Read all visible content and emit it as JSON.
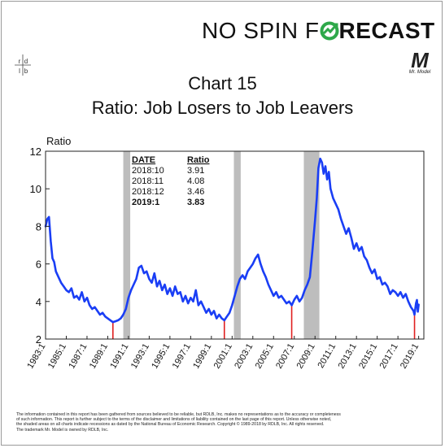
{
  "brand": {
    "part1": "NO SPIN F",
    "part2": "RECAST",
    "o_color": "#2ea84a",
    "logo_text": "rd lb"
  },
  "mr_model": {
    "letter": "M",
    "caption": "Mr. Model"
  },
  "chart_data": {
    "type": "line",
    "title": "Chart 15",
    "subtitle": "Ratio: Job Losers to Job Leavers",
    "ylabel": "Ratio",
    "ylim": [
      2,
      12
    ],
    "yticks": [
      2,
      4,
      6,
      8,
      10,
      12
    ],
    "xlim": [
      1983.0,
      2019.5
    ],
    "xtick_labels": [
      "1983:1",
      "1985:1",
      "1987:1",
      "1989:1",
      "1991:1",
      "1993:1",
      "1995:1",
      "1997:1",
      "1999:1",
      "2001:1",
      "2003:1",
      "2005:1",
      "2007:1",
      "2009:1",
      "2011:1",
      "2013:1",
      "2015:1",
      "2017:1",
      "2019:1"
    ],
    "series_color": "#1a3ef5",
    "recessions": [
      [
        1990.5,
        1991.17
      ],
      [
        2001.17,
        2001.83
      ],
      [
        2007.92,
        2009.42
      ]
    ],
    "troughs": [
      1989.5,
      2000.25,
      2006.75,
      2018.6
    ],
    "series": [
      {
        "name": "",
        "points": [
          [
            1983.0,
            8.0
          ],
          [
            1983.17,
            8.4
          ],
          [
            1983.33,
            8.5
          ],
          [
            1983.5,
            7.2
          ],
          [
            1983.67,
            6.3
          ],
          [
            1983.83,
            6.1
          ],
          [
            1984.0,
            5.6
          ],
          [
            1984.25,
            5.3
          ],
          [
            1984.5,
            5.0
          ],
          [
            1984.75,
            4.8
          ],
          [
            1985.0,
            4.6
          ],
          [
            1985.25,
            4.5
          ],
          [
            1985.5,
            4.7
          ],
          [
            1985.75,
            4.2
          ],
          [
            1986.0,
            4.3
          ],
          [
            1986.25,
            4.1
          ],
          [
            1986.5,
            4.5
          ],
          [
            1986.75,
            4.0
          ],
          [
            1987.0,
            4.2
          ],
          [
            1987.25,
            3.8
          ],
          [
            1987.5,
            3.6
          ],
          [
            1987.75,
            3.7
          ],
          [
            1988.0,
            3.5
          ],
          [
            1988.25,
            3.3
          ],
          [
            1988.5,
            3.4
          ],
          [
            1988.75,
            3.2
          ],
          [
            1989.0,
            3.1
          ],
          [
            1989.25,
            3.0
          ],
          [
            1989.5,
            2.9
          ],
          [
            1989.75,
            2.95
          ],
          [
            1990.0,
            3.0
          ],
          [
            1990.25,
            3.1
          ],
          [
            1990.5,
            3.3
          ],
          [
            1990.75,
            3.6
          ],
          [
            1991.0,
            4.2
          ],
          [
            1991.25,
            4.6
          ],
          [
            1991.5,
            4.9
          ],
          [
            1991.75,
            5.2
          ],
          [
            1992.0,
            5.8
          ],
          [
            1992.25,
            5.9
          ],
          [
            1992.5,
            5.5
          ],
          [
            1992.75,
            5.6
          ],
          [
            1993.0,
            5.2
          ],
          [
            1993.25,
            5.0
          ],
          [
            1993.5,
            5.5
          ],
          [
            1993.75,
            4.8
          ],
          [
            1994.0,
            5.1
          ],
          [
            1994.25,
            4.6
          ],
          [
            1994.5,
            4.9
          ],
          [
            1994.75,
            4.4
          ],
          [
            1995.0,
            4.7
          ],
          [
            1995.25,
            4.3
          ],
          [
            1995.5,
            4.8
          ],
          [
            1995.75,
            4.4
          ],
          [
            1996.0,
            4.5
          ],
          [
            1996.25,
            4.0
          ],
          [
            1996.5,
            4.3
          ],
          [
            1996.75,
            3.9
          ],
          [
            1997.0,
            4.2
          ],
          [
            1997.25,
            4.0
          ],
          [
            1997.5,
            4.6
          ],
          [
            1997.75,
            3.8
          ],
          [
            1998.0,
            4.0
          ],
          [
            1998.25,
            3.7
          ],
          [
            1998.5,
            3.4
          ],
          [
            1998.75,
            3.6
          ],
          [
            1999.0,
            3.3
          ],
          [
            1999.25,
            3.5
          ],
          [
            1999.5,
            3.1
          ],
          [
            1999.75,
            3.3
          ],
          [
            2000.0,
            3.1
          ],
          [
            2000.25,
            3.0
          ],
          [
            2000.5,
            3.2
          ],
          [
            2000.75,
            3.4
          ],
          [
            2001.0,
            3.8
          ],
          [
            2001.25,
            4.3
          ],
          [
            2001.5,
            4.8
          ],
          [
            2001.75,
            5.2
          ],
          [
            2002.0,
            5.4
          ],
          [
            2002.25,
            5.2
          ],
          [
            2002.5,
            5.6
          ],
          [
            2002.75,
            5.8
          ],
          [
            2003.0,
            6.0
          ],
          [
            2003.25,
            6.3
          ],
          [
            2003.5,
            6.5
          ],
          [
            2003.75,
            6.0
          ],
          [
            2004.0,
            5.6
          ],
          [
            2004.25,
            5.3
          ],
          [
            2004.5,
            4.9
          ],
          [
            2004.75,
            4.6
          ],
          [
            2005.0,
            4.3
          ],
          [
            2005.25,
            4.5
          ],
          [
            2005.5,
            4.2
          ],
          [
            2005.75,
            4.3
          ],
          [
            2006.0,
            4.1
          ],
          [
            2006.25,
            3.9
          ],
          [
            2006.5,
            4.0
          ],
          [
            2006.75,
            3.8
          ],
          [
            2007.0,
            4.1
          ],
          [
            2007.25,
            4.3
          ],
          [
            2007.5,
            4.0
          ],
          [
            2007.75,
            4.2
          ],
          [
            2008.0,
            4.6
          ],
          [
            2008.25,
            4.9
          ],
          [
            2008.5,
            5.3
          ],
          [
            2008.75,
            6.7
          ],
          [
            2009.0,
            8.3
          ],
          [
            2009.17,
            9.5
          ],
          [
            2009.33,
            11.1
          ],
          [
            2009.5,
            11.6
          ],
          [
            2009.67,
            11.4
          ],
          [
            2009.83,
            10.8
          ],
          [
            2010.0,
            11.2
          ],
          [
            2010.17,
            10.5
          ],
          [
            2010.33,
            10.9
          ],
          [
            2010.5,
            10.0
          ],
          [
            2010.75,
            9.5
          ],
          [
            2011.0,
            9.2
          ],
          [
            2011.25,
            8.9
          ],
          [
            2011.5,
            8.4
          ],
          [
            2011.75,
            8.0
          ],
          [
            2012.0,
            7.6
          ],
          [
            2012.25,
            7.9
          ],
          [
            2012.5,
            7.4
          ],
          [
            2012.75,
            6.8
          ],
          [
            2013.0,
            7.1
          ],
          [
            2013.25,
            6.7
          ],
          [
            2013.5,
            6.9
          ],
          [
            2013.75,
            6.4
          ],
          [
            2014.0,
            6.2
          ],
          [
            2014.25,
            5.8
          ],
          [
            2014.5,
            5.5
          ],
          [
            2014.75,
            5.7
          ],
          [
            2015.0,
            5.2
          ],
          [
            2015.25,
            5.3
          ],
          [
            2015.5,
            4.9
          ],
          [
            2015.75,
            5.0
          ],
          [
            2016.0,
            4.8
          ],
          [
            2016.25,
            4.4
          ],
          [
            2016.5,
            4.6
          ],
          [
            2016.75,
            4.5
          ],
          [
            2017.0,
            4.3
          ],
          [
            2017.25,
            4.5
          ],
          [
            2017.5,
            4.2
          ],
          [
            2017.75,
            4.4
          ],
          [
            2018.0,
            4.0
          ],
          [
            2018.25,
            3.7
          ],
          [
            2018.5,
            3.5
          ],
          [
            2018.6,
            3.3
          ],
          [
            2018.75,
            3.91
          ],
          [
            2018.83,
            4.08
          ],
          [
            2018.92,
            3.46
          ],
          [
            2019.0,
            3.83
          ]
        ]
      }
    ],
    "table": {
      "headers": [
        "DATE",
        "Ratio"
      ],
      "rows": [
        [
          "2018:10",
          "3.91"
        ],
        [
          "2018:11",
          "4.08"
        ],
        [
          "2018:12",
          "3.46"
        ],
        [
          "2019:1",
          "3.83"
        ]
      ]
    }
  },
  "disclaimer": [
    "The information contained in this report has been gathered from sources believed to be reliable, but RDLB, Inc. makes no representations as to the accuracy or completeness",
    "of such information. This report is further subject to the terms of the disclaimer and limitations of liability contained on the last page of this report. Unless otherwise noted,",
    "the shaded areas on all charts indicate recessions as dated by the National Bureau of Economic Research. Copyright © 1989-2018 by RDLB, Inc. All rights reserved.",
    "The trademark Mr. Model is owned by RDLB, Inc."
  ]
}
